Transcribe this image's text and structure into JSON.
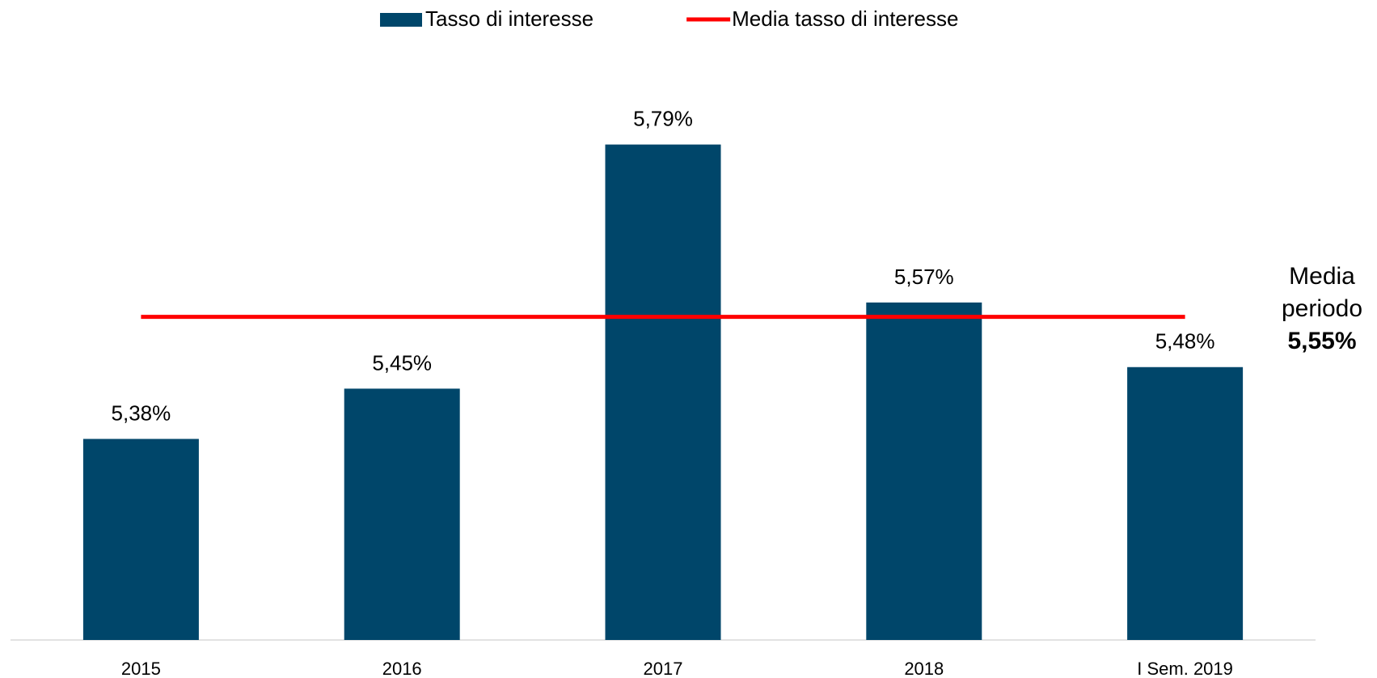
{
  "chart_data": {
    "type": "bar",
    "categories": [
      "2015",
      "2016",
      "2017",
      "2018",
      "I Sem. 2019"
    ],
    "series": [
      {
        "name": "Tasso di interesse",
        "type": "bar",
        "color": "#00466a",
        "values": [
          5.38,
          5.45,
          5.79,
          5.57,
          5.48
        ],
        "value_labels": [
          "5,38%",
          "5,45%",
          "5,79%",
          "5,57%",
          "5,48%"
        ]
      },
      {
        "name": "Media tasso di interesse",
        "type": "line",
        "color": "#ff0000",
        "values": [
          5.55,
          5.55,
          5.55,
          5.55,
          5.55
        ]
      }
    ],
    "annotation": {
      "text": "Media periodo",
      "value": 5.55,
      "value_label": "5,55%"
    },
    "ylim": [
      5.1,
      5.9
    ],
    "legend": "top"
  }
}
